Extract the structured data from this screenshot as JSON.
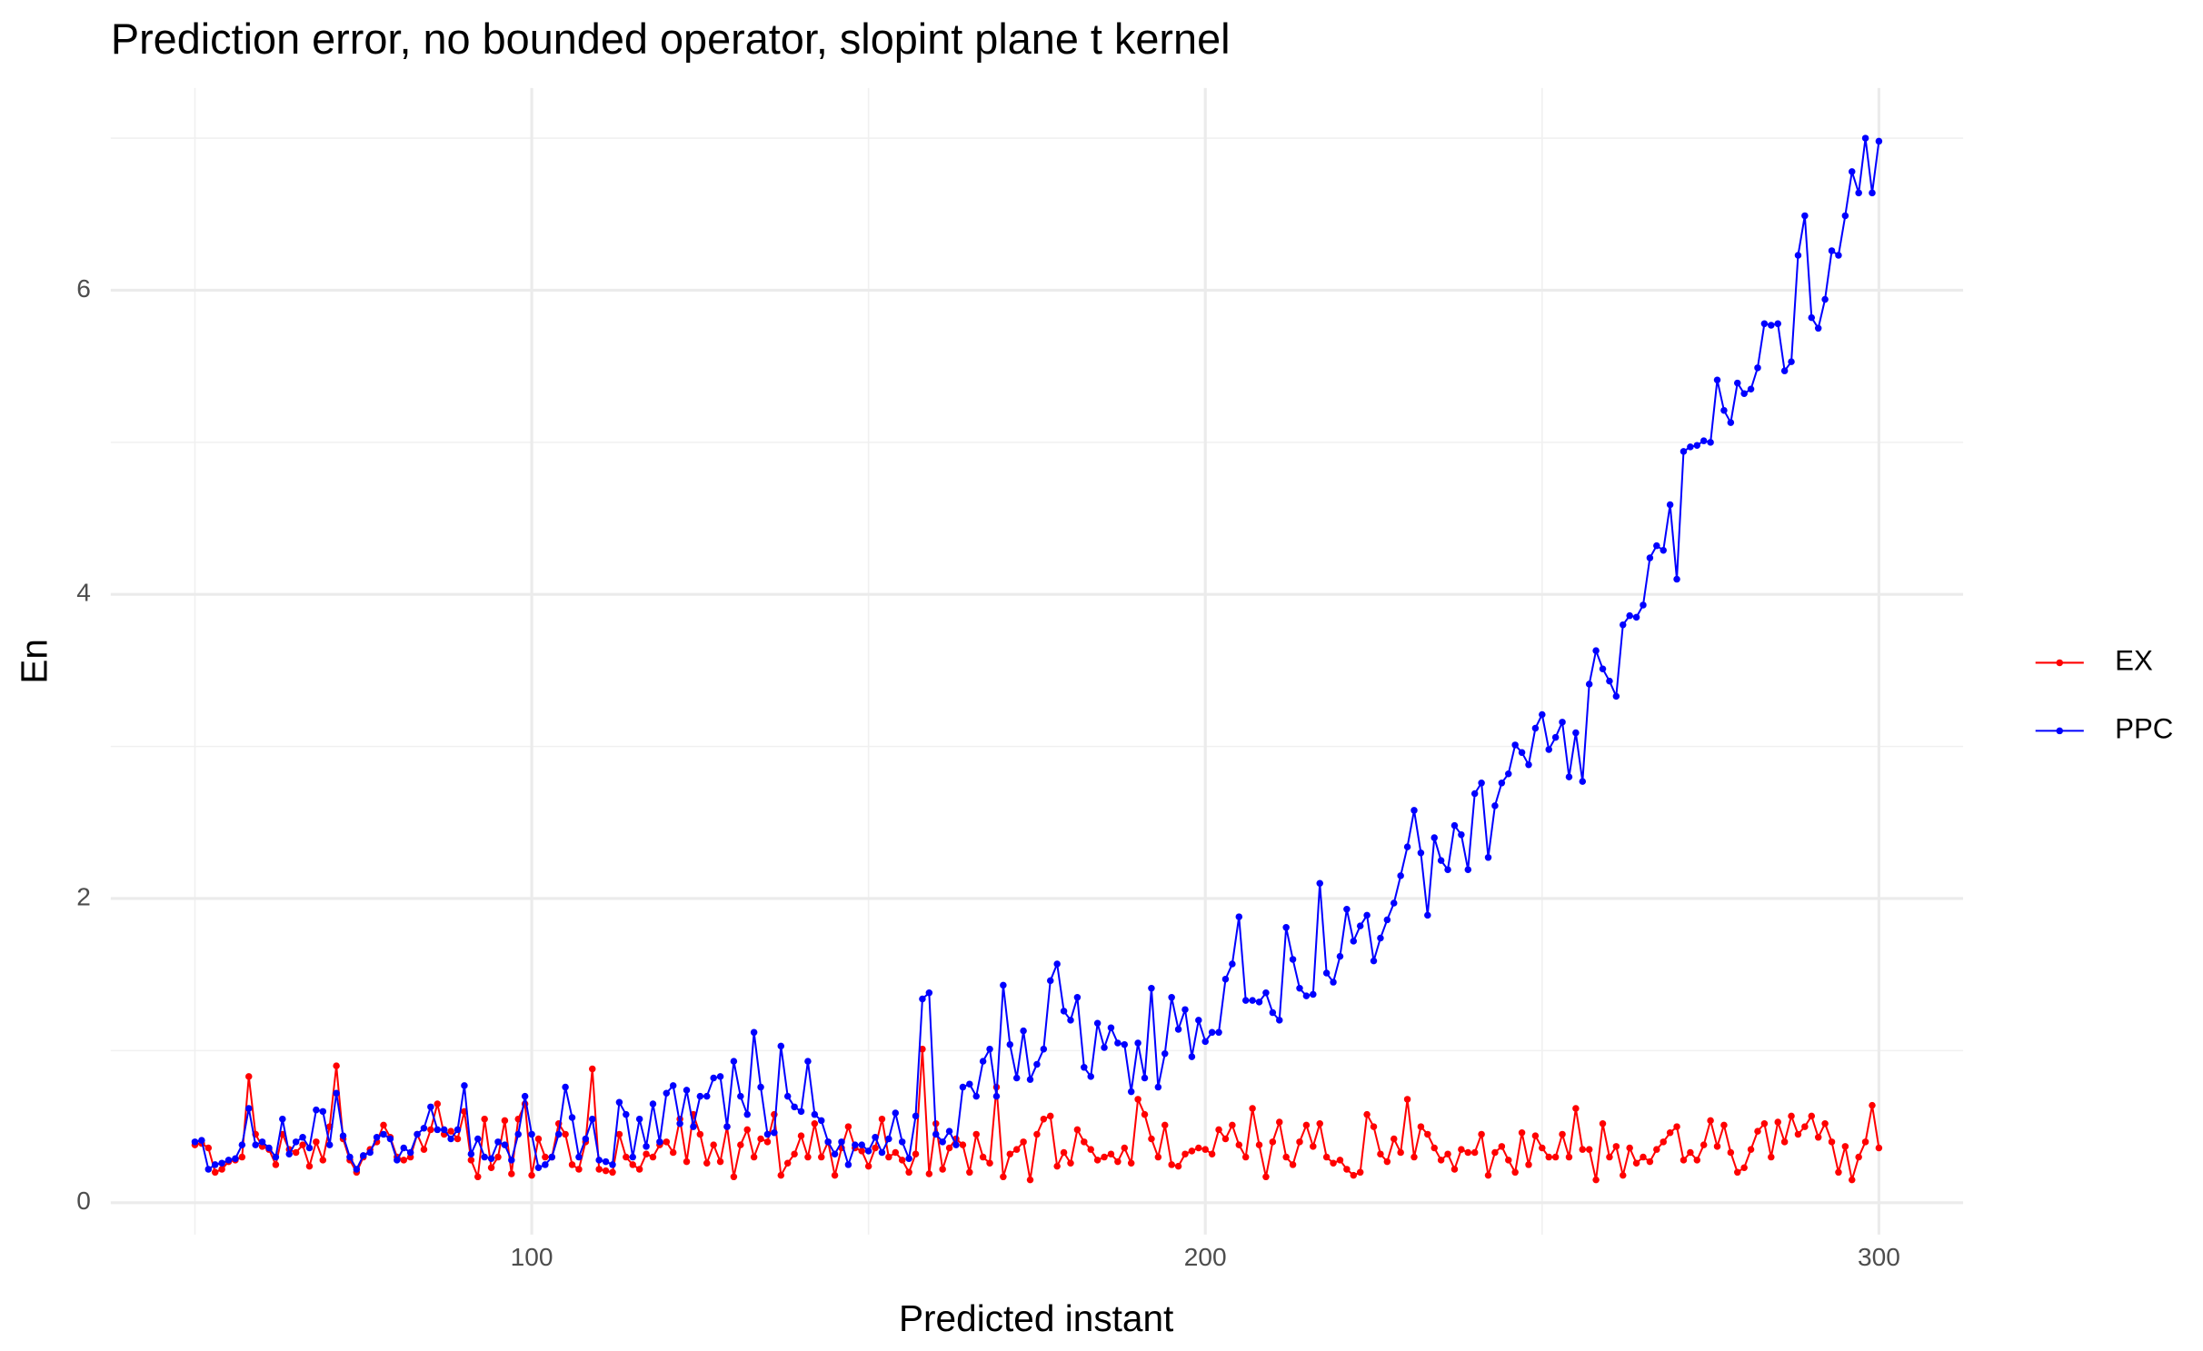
{
  "chart_data": {
    "type": "line",
    "title": "Prediction error, no bounded operator, slopint plane t kernel",
    "x_label": "Predicted instant",
    "y_label": "En",
    "xlim": [
      37.5,
      312.5
    ],
    "ylim": [
      -0.21,
      7.33
    ],
    "xticks": [
      100,
      200,
      300
    ],
    "yticks": [
      0,
      2,
      4,
      6
    ],
    "grid": true,
    "legend": "right",
    "x": [
      50,
      51,
      52,
      53,
      54,
      55,
      56,
      57,
      58,
      59,
      60,
      61,
      62,
      63,
      64,
      65,
      66,
      67,
      68,
      69,
      70,
      71,
      72,
      73,
      74,
      75,
      76,
      77,
      78,
      79,
      80,
      81,
      82,
      83,
      84,
      85,
      86,
      87,
      88,
      89,
      90,
      91,
      92,
      93,
      94,
      95,
      96,
      97,
      98,
      99,
      100,
      101,
      102,
      103,
      104,
      105,
      106,
      107,
      108,
      109,
      110,
      111,
      112,
      113,
      114,
      115,
      116,
      117,
      118,
      119,
      120,
      121,
      122,
      123,
      124,
      125,
      126,
      127,
      128,
      129,
      130,
      131,
      132,
      133,
      134,
      135,
      136,
      137,
      138,
      139,
      140,
      141,
      142,
      143,
      144,
      145,
      146,
      147,
      148,
      149,
      150,
      151,
      152,
      153,
      154,
      155,
      156,
      157,
      158,
      159,
      160,
      161,
      162,
      163,
      164,
      165,
      166,
      167,
      168,
      169,
      170,
      171,
      172,
      173,
      174,
      175,
      176,
      177,
      178,
      179,
      180,
      181,
      182,
      183,
      184,
      185,
      186,
      187,
      188,
      189,
      190,
      191,
      192,
      193,
      194,
      195,
      196,
      197,
      198,
      199,
      200,
      201,
      202,
      203,
      204,
      205,
      206,
      207,
      208,
      209,
      210,
      211,
      212,
      213,
      214,
      215,
      216,
      217,
      218,
      219,
      220,
      221,
      222,
      223,
      224,
      225,
      226,
      227,
      228,
      229,
      230,
      231,
      232,
      233,
      234,
      235,
      236,
      237,
      238,
      239,
      240,
      241,
      242,
      243,
      244,
      245,
      246,
      247,
      248,
      249,
      250,
      251,
      252,
      253,
      254,
      255,
      256,
      257,
      258,
      259,
      260,
      261,
      262,
      263,
      264,
      265,
      266,
      267,
      268,
      269,
      270,
      271,
      272,
      273,
      274,
      275,
      276,
      277,
      278,
      279,
      280,
      281,
      282,
      283,
      284,
      285,
      286,
      287,
      288,
      289,
      290,
      291,
      292,
      293,
      294,
      295,
      296,
      297,
      298,
      299,
      300
    ],
    "series": [
      {
        "name": "EX",
        "color": "#ff0000",
        "values": [
          0.38,
          0.39,
          0.36,
          0.2,
          0.22,
          0.27,
          0.28,
          0.3,
          0.83,
          0.45,
          0.37,
          0.35,
          0.25,
          0.45,
          0.35,
          0.33,
          0.38,
          0.24,
          0.4,
          0.28,
          0.5,
          0.9,
          0.42,
          0.28,
          0.2,
          0.3,
          0.35,
          0.4,
          0.51,
          0.43,
          0.3,
          0.28,
          0.3,
          0.45,
          0.35,
          0.48,
          0.65,
          0.45,
          0.47,
          0.42,
          0.6,
          0.28,
          0.17,
          0.55,
          0.23,
          0.3,
          0.54,
          0.19,
          0.55,
          0.65,
          0.18,
          0.42,
          0.3,
          0.3,
          0.52,
          0.45,
          0.25,
          0.22,
          0.4,
          0.88,
          0.22,
          0.21,
          0.2,
          0.45,
          0.3,
          0.25,
          0.22,
          0.32,
          0.3,
          0.38,
          0.4,
          0.33,
          0.55,
          0.27,
          0.58,
          0.45,
          0.26,
          0.38,
          0.27,
          0.5,
          0.17,
          0.38,
          0.48,
          0.3,
          0.42,
          0.4,
          0.58,
          0.18,
          0.26,
          0.32,
          0.44,
          0.3,
          0.52,
          0.3,
          0.4,
          0.18,
          0.36,
          0.5,
          0.36,
          0.34,
          0.24,
          0.36,
          0.55,
          0.3,
          0.33,
          0.28,
          0.2,
          0.32,
          1.01,
          0.19,
          0.52,
          0.22,
          0.36,
          0.42,
          0.38,
          0.2,
          0.45,
          0.3,
          0.26,
          0.76,
          0.17,
          0.32,
          0.35,
          0.4,
          0.15,
          0.45,
          0.55,
          0.57,
          0.24,
          0.33,
          0.26,
          0.48,
          0.4,
          0.35,
          0.28,
          0.3,
          0.32,
          0.27,
          0.36,
          0.26,
          0.68,
          0.58,
          0.42,
          0.3,
          0.51,
          0.25,
          0.24,
          0.32,
          0.34,
          0.36,
          0.35,
          0.32,
          0.48,
          0.42,
          0.51,
          0.38,
          0.3,
          0.62,
          0.38,
          0.17,
          0.4,
          0.53,
          0.3,
          0.25,
          0.4,
          0.51,
          0.37,
          0.52,
          0.3,
          0.26,
          0.28,
          0.22,
          0.18,
          0.2,
          0.58,
          0.5,
          0.32,
          0.27,
          0.42,
          0.33,
          0.68,
          0.3,
          0.5,
          0.45,
          0.36,
          0.28,
          0.32,
          0.22,
          0.35,
          0.33,
          0.33,
          0.45,
          0.18,
          0.33,
          0.37,
          0.28,
          0.2,
          0.46,
          0.25,
          0.44,
          0.36,
          0.3,
          0.3,
          0.45,
          0.3,
          0.62,
          0.35,
          0.35,
          0.15,
          0.52,
          0.3,
          0.37,
          0.18,
          0.36,
          0.26,
          0.3,
          0.27,
          0.35,
          0.4,
          0.46,
          0.5,
          0.28,
          0.33,
          0.28,
          0.38,
          0.54,
          0.37,
          0.51,
          0.33,
          0.2,
          0.23,
          0.35,
          0.47,
          0.52,
          0.3,
          0.53,
          0.4,
          0.57,
          0.45,
          0.5,
          0.57,
          0.43,
          0.52,
          0.4,
          0.2,
          0.37,
          0.15,
          0.3,
          0.4,
          0.64,
          0.36
        ]
      },
      {
        "name": "PPC",
        "color": "#0000ff",
        "values": [
          0.4,
          0.41,
          0.22,
          0.25,
          0.26,
          0.28,
          0.29,
          0.38,
          0.62,
          0.38,
          0.4,
          0.36,
          0.3,
          0.55,
          0.32,
          0.4,
          0.43,
          0.36,
          0.61,
          0.6,
          0.38,
          0.72,
          0.44,
          0.3,
          0.22,
          0.31,
          0.33,
          0.43,
          0.45,
          0.42,
          0.28,
          0.36,
          0.33,
          0.45,
          0.49,
          0.63,
          0.48,
          0.48,
          0.42,
          0.48,
          0.77,
          0.32,
          0.42,
          0.3,
          0.29,
          0.4,
          0.38,
          0.28,
          0.45,
          0.7,
          0.45,
          0.23,
          0.25,
          0.3,
          0.45,
          0.76,
          0.56,
          0.3,
          0.42,
          0.55,
          0.28,
          0.27,
          0.25,
          0.66,
          0.58,
          0.3,
          0.55,
          0.37,
          0.65,
          0.4,
          0.72,
          0.77,
          0.52,
          0.74,
          0.5,
          0.7,
          0.7,
          0.82,
          0.83,
          0.5,
          0.93,
          0.7,
          0.58,
          1.12,
          0.76,
          0.45,
          0.46,
          1.03,
          0.7,
          0.63,
          0.6,
          0.93,
          0.58,
          0.54,
          0.4,
          0.32,
          0.4,
          0.25,
          0.38,
          0.38,
          0.34,
          0.43,
          0.33,
          0.42,
          0.59,
          0.4,
          0.29,
          0.57,
          1.34,
          1.38,
          0.45,
          0.4,
          0.47,
          0.38,
          0.76,
          0.78,
          0.7,
          0.93,
          1.01,
          0.7,
          1.43,
          1.04,
          0.82,
          1.13,
          0.81,
          0.91,
          1.01,
          1.46,
          1.57,
          1.26,
          1.2,
          1.35,
          0.89,
          0.83,
          1.18,
          1.02,
          1.15,
          1.05,
          1.04,
          0.73,
          1.05,
          0.82,
          1.41,
          0.76,
          0.98,
          1.35,
          1.14,
          1.27,
          0.96,
          1.2,
          1.06,
          1.12,
          1.12,
          1.47,
          1.57,
          1.88,
          1.33,
          1.33,
          1.32,
          1.38,
          1.25,
          1.2,
          1.81,
          1.6,
          1.41,
          1.36,
          1.37,
          2.1,
          1.51,
          1.45,
          1.62,
          1.93,
          1.72,
          1.82,
          1.89,
          1.59,
          1.74,
          1.86,
          1.97,
          2.15,
          2.34,
          2.58,
          2.3,
          1.89,
          2.4,
          2.25,
          2.19,
          2.48,
          2.42,
          2.19,
          2.69,
          2.76,
          2.27,
          2.61,
          2.76,
          2.82,
          3.01,
          2.96,
          2.88,
          3.12,
          3.21,
          2.98,
          3.06,
          3.16,
          2.8,
          3.09,
          2.77,
          3.41,
          3.63,
          3.51,
          3.43,
          3.33,
          3.8,
          3.86,
          3.85,
          3.93,
          4.24,
          4.32,
          4.29,
          4.59,
          4.1,
          4.94,
          4.97,
          4.98,
          5.01,
          5.0,
          5.41,
          5.21,
          5.13,
          5.39,
          5.32,
          5.35,
          5.49,
          5.78,
          5.77,
          5.78,
          5.47,
          5.53,
          6.23,
          6.49,
          5.82,
          5.75,
          5.94,
          6.26,
          6.23,
          6.49,
          6.78,
          6.64,
          7.0,
          6.64,
          6.98
        ]
      }
    ]
  }
}
